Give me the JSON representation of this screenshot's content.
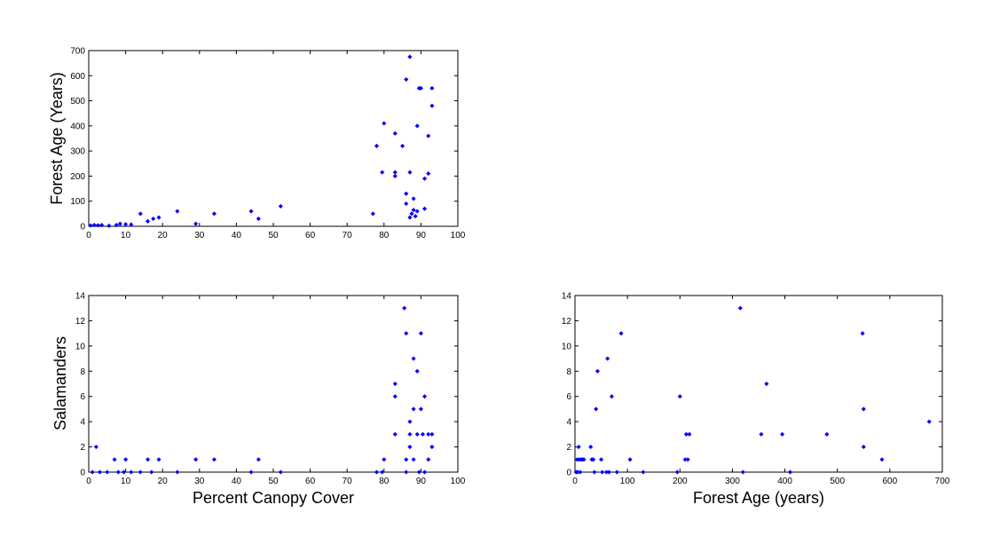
{
  "marker_color": "#0000ff",
  "chart_data": [
    {
      "id": "panel-canopy-vs-age",
      "type": "scatter",
      "title": "",
      "xlabel": "",
      "ylabel": "Forest Age (Years)",
      "xlim": [
        0,
        100
      ],
      "ylim": [
        0,
        700
      ],
      "xticks": [
        0,
        10,
        20,
        30,
        40,
        50,
        60,
        70,
        80,
        90,
        100
      ],
      "yticks": [
        0,
        100,
        200,
        300,
        400,
        500,
        600,
        700
      ],
      "grid": false,
      "points": [
        [
          0.5,
          3
        ],
        [
          1.5,
          5
        ],
        [
          2.5,
          4
        ],
        [
          3.5,
          5
        ],
        [
          5.5,
          2
        ],
        [
          7.5,
          5
        ],
        [
          8.5,
          10
        ],
        [
          10,
          8
        ],
        [
          11.5,
          7
        ],
        [
          14,
          50
        ],
        [
          16,
          20
        ],
        [
          17.5,
          30
        ],
        [
          19,
          35
        ],
        [
          24,
          60
        ],
        [
          29,
          10
        ],
        [
          34,
          50
        ],
        [
          44,
          60
        ],
        [
          46,
          30
        ],
        [
          52,
          80
        ],
        [
          77,
          50
        ],
        [
          78,
          320
        ],
        [
          79.5,
          215
        ],
        [
          80,
          410
        ],
        [
          83,
          370
        ],
        [
          83,
          200
        ],
        [
          83,
          215
        ],
        [
          85,
          320
        ],
        [
          86,
          585
        ],
        [
          86,
          130
        ],
        [
          86,
          90
        ],
        [
          87,
          675
        ],
        [
          87,
          215
        ],
        [
          87,
          35
        ],
        [
          87.5,
          50
        ],
        [
          88,
          110
        ],
        [
          88,
          65
        ],
        [
          88.5,
          40
        ],
        [
          89,
          400
        ],
        [
          89,
          60
        ],
        [
          89.5,
          550
        ],
        [
          90,
          550
        ],
        [
          91,
          70
        ],
        [
          91,
          190
        ],
        [
          92,
          210
        ],
        [
          92,
          360
        ],
        [
          93,
          550
        ],
        [
          93,
          480
        ]
      ]
    },
    {
      "id": "panel-canopy-vs-salamanders",
      "type": "scatter",
      "title": "",
      "xlabel": "Percent Canopy Cover",
      "ylabel": "Salamanders",
      "xlim": [
        0,
        100
      ],
      "ylim": [
        0,
        14
      ],
      "xticks": [
        0,
        10,
        20,
        30,
        40,
        50,
        60,
        70,
        80,
        90,
        100
      ],
      "yticks": [
        0,
        2,
        4,
        6,
        8,
        10,
        12,
        14
      ],
      "grid": false,
      "points": [
        [
          1,
          0
        ],
        [
          2,
          2
        ],
        [
          3,
          0
        ],
        [
          5,
          0
        ],
        [
          7,
          1
        ],
        [
          8,
          0
        ],
        [
          9.5,
          0
        ],
        [
          10,
          1
        ],
        [
          11.5,
          0
        ],
        [
          14,
          0
        ],
        [
          16,
          1
        ],
        [
          17,
          0
        ],
        [
          19,
          1
        ],
        [
          24,
          0
        ],
        [
          29,
          1
        ],
        [
          34,
          1
        ],
        [
          44,
          0
        ],
        [
          46,
          1
        ],
        [
          52,
          0
        ],
        [
          78,
          0
        ],
        [
          79.5,
          0
        ],
        [
          80,
          1
        ],
        [
          83,
          3
        ],
        [
          83,
          6
        ],
        [
          83,
          7
        ],
        [
          85.5,
          13
        ],
        [
          86,
          11
        ],
        [
          86,
          1
        ],
        [
          86,
          0
        ],
        [
          87,
          4
        ],
        [
          87,
          3
        ],
        [
          87,
          2
        ],
        [
          88,
          9
        ],
        [
          88,
          5
        ],
        [
          88,
          1
        ],
        [
          89,
          8
        ],
        [
          89,
          3
        ],
        [
          89.5,
          0
        ],
        [
          90,
          11
        ],
        [
          90,
          5
        ],
        [
          90.5,
          3
        ],
        [
          91,
          6
        ],
        [
          91,
          0
        ],
        [
          92,
          3
        ],
        [
          92,
          1
        ],
        [
          93,
          3
        ],
        [
          93,
          2
        ]
      ]
    },
    {
      "id": "panel-age-vs-salamanders",
      "type": "scatter",
      "title": "",
      "xlabel": "Forest Age (years)",
      "ylabel": "",
      "xlim": [
        0,
        700
      ],
      "ylim": [
        0,
        14
      ],
      "xticks": [
        0,
        100,
        200,
        300,
        400,
        500,
        600,
        700
      ],
      "yticks": [
        0,
        2,
        4,
        6,
        8,
        10,
        12,
        14
      ],
      "grid": false,
      "points": [
        [
          2,
          0
        ],
        [
          4,
          1
        ],
        [
          5,
          0
        ],
        [
          7,
          2
        ],
        [
          8,
          1
        ],
        [
          10,
          0
        ],
        [
          12,
          1
        ],
        [
          14,
          1
        ],
        [
          17,
          1
        ],
        [
          30,
          2
        ],
        [
          32,
          1
        ],
        [
          35,
          1
        ],
        [
          37,
          0
        ],
        [
          40,
          5
        ],
        [
          43,
          8
        ],
        [
          50,
          1
        ],
        [
          52,
          0
        ],
        [
          60,
          0
        ],
        [
          62,
          9
        ],
        [
          65,
          0
        ],
        [
          70,
          6
        ],
        [
          80,
          0
        ],
        [
          88,
          11
        ],
        [
          105,
          1
        ],
        [
          130,
          0
        ],
        [
          195,
          0
        ],
        [
          200,
          6
        ],
        [
          210,
          1
        ],
        [
          212,
          3
        ],
        [
          215,
          1
        ],
        [
          218,
          3
        ],
        [
          315,
          13
        ],
        [
          320,
          0
        ],
        [
          355,
          3
        ],
        [
          365,
          7
        ],
        [
          395,
          3
        ],
        [
          410,
          0
        ],
        [
          480,
          3
        ],
        [
          548,
          11
        ],
        [
          550,
          5
        ],
        [
          550,
          2
        ],
        [
          585,
          1
        ],
        [
          675,
          4
        ]
      ]
    }
  ]
}
